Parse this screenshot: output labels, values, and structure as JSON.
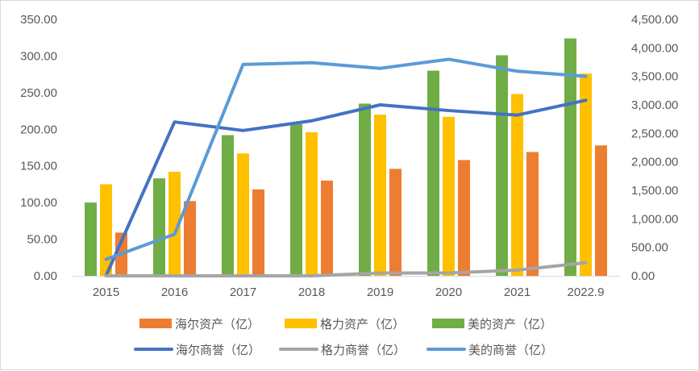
{
  "chart_data": {
    "type": "bar",
    "categories": [
      "2015",
      "2016",
      "2017",
      "2018",
      "2019",
      "2020",
      "2021",
      "2022.9"
    ],
    "y_left": {
      "range": [
        0,
        350
      ],
      "ticks": [
        "0.00",
        "50.00",
        "100.00",
        "150.00",
        "200.00",
        "250.00",
        "300.00",
        "350.00"
      ]
    },
    "y_right": {
      "range": [
        0,
        4500
      ],
      "ticks": [
        "0.00",
        "500.00",
        "1,000.00",
        "1,500.00",
        "2,000.00",
        "2,500.00",
        "3,000.00",
        "3,500.00",
        "4,000.00",
        "4,500.00"
      ]
    },
    "bar_series": [
      {
        "name": "美的资产（亿）",
        "color": "#70ad47",
        "values": [
          100,
          133,
          192,
          207,
          235,
          280,
          301,
          324
        ]
      },
      {
        "name": "格力资产（亿）",
        "color": "#ffc000",
        "values": [
          125,
          142,
          167,
          196,
          220,
          217,
          248,
          276
        ]
      },
      {
        "name": "海尔资产（亿）",
        "color": "#ed7d31",
        "values": [
          59,
          102,
          118,
          130,
          146,
          158,
          169,
          178
        ]
      }
    ],
    "line_series": [
      {
        "name": "海尔商誉（亿）",
        "color": "#4472c4",
        "values": [
          0,
          2700,
          2550,
          2720,
          3000,
          2900,
          2820,
          3080
        ]
      },
      {
        "name": "格力商誉（亿）",
        "color": "#a5a5a5",
        "values": [
          0,
          0,
          0,
          0,
          50,
          50,
          100,
          230
        ]
      },
      {
        "name": "美的商誉（亿）",
        "color": "#5b9bd5",
        "values": [
          290,
          730,
          3710,
          3740,
          3640,
          3800,
          3590,
          3500
        ]
      }
    ],
    "legend_rows": [
      [
        "海尔资产（亿）",
        "格力资产（亿）",
        "美的资产（亿）"
      ],
      [
        "海尔商誉（亿）",
        "格力商誉（亿）",
        "美的商誉（亿）"
      ]
    ],
    "legend_position": "bottom",
    "grid": false
  }
}
